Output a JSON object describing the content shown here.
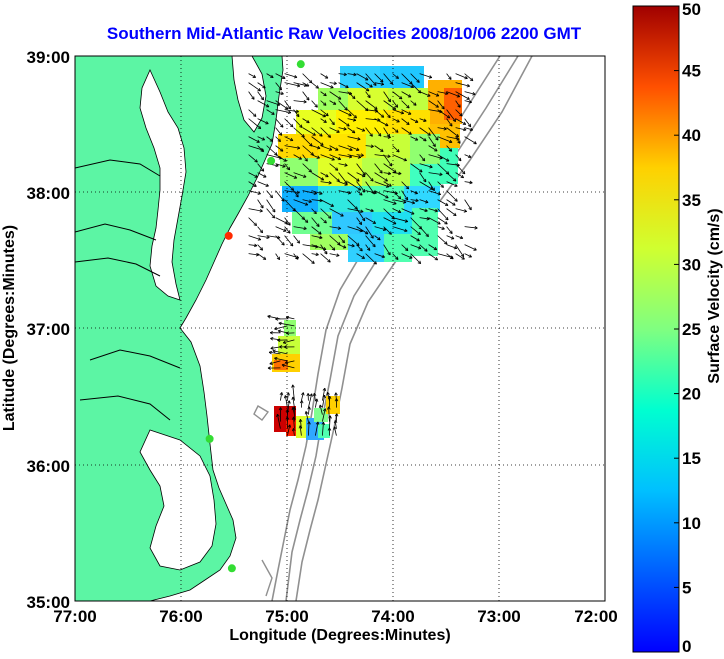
{
  "chart_data": {
    "type": "heatmap",
    "title": "Southern Mid-Atlantic Raw Velocities 2008/10/06 2200 GMT",
    "xlabel": "Longitude (Degrees:Minutes)",
    "ylabel": "Latitude (Degrees:Minutes)",
    "x_ticks": [
      "77:00",
      "76:00",
      "75:00",
      "74:00",
      "73:00",
      "72:00"
    ],
    "y_ticks": [
      "39:00",
      "38:00",
      "37:00",
      "36:00",
      "35:00"
    ],
    "xlim": [
      -77,
      -72
    ],
    "ylim": [
      35,
      39
    ],
    "grid": true,
    "colorbar": {
      "label": "Surface Velocity (cm/s)",
      "min": 0,
      "max": 50,
      "ticks": [
        "0",
        "5",
        "10",
        "15",
        "20",
        "25",
        "30",
        "35",
        "40",
        "45",
        "50"
      ],
      "colormap": "jet"
    },
    "colors": {
      "land": "#5cf5a4",
      "coast": "#000000",
      "bathymetry": "#909090",
      "site_marker": "#33dd33",
      "site_marker_active": "#ff2a00"
    },
    "velocity_patches": [
      {
        "name": "north",
        "lon_range": [
          -75.4,
          -73.3
        ],
        "lat_range": [
          37.5,
          38.9
        ],
        "speed_range": [
          5,
          40
        ]
      },
      {
        "name": "mid",
        "lon_range": [
          -75.1,
          -74.9
        ],
        "lat_range": [
          36.7,
          37.1
        ],
        "speed_range": [
          15,
          35
        ]
      },
      {
        "name": "south",
        "lon_range": [
          -75.1,
          -74.5
        ],
        "lat_range": [
          36.2,
          36.5
        ],
        "speed_range": [
          8,
          45
        ]
      }
    ],
    "sites": [
      {
        "lon": -74.87,
        "lat": 38.94,
        "active": false
      },
      {
        "lon": -75.15,
        "lat": 38.23,
        "active": false
      },
      {
        "lon": -75.55,
        "lat": 37.68,
        "active": true
      },
      {
        "lon": -75.73,
        "lat": 36.19,
        "active": false
      },
      {
        "lon": -75.52,
        "lat": 35.24,
        "active": false
      }
    ]
  }
}
